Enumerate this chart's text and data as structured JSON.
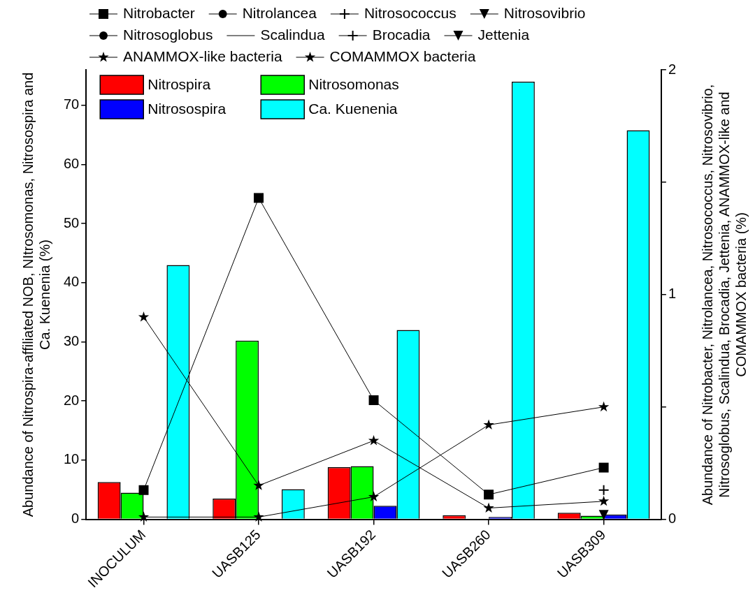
{
  "chart_data": {
    "type": "bar",
    "ylabel": "Abundance of Nitrospira-affiliated NOB, NItrosomonas, Nitrosospira and Ca. Kuenenia (%)",
    "y2label": "Abundance of Nitrobacter, Nitrolancea, Nitrosococcus, Nitrosovibrio, Nitrosoglobus, Scalindua, Brocadia, Jettenia, ANAMMOX-like and COMAMMOX bacteria (%)",
    "categories": [
      "INOCULUM",
      "UASB125",
      "UASB192",
      "UASB260",
      "UASB309"
    ],
    "series": [
      {
        "name": "Nitrospira",
        "color": "#ff0000",
        "values": [
          6.3,
          3.5,
          8.8,
          0.7,
          1.1
        ]
      },
      {
        "name": "Nitrosomonas",
        "color": "#00ff00",
        "values": [
          4.5,
          30.2,
          9.0,
          null,
          0.6
        ]
      },
      {
        "name": "Nitrosospira",
        "color": "#0000ff",
        "values": [
          null,
          null,
          2.3,
          0.4,
          0.8
        ]
      },
      {
        "name": "Ca. Kuenenia",
        "color": "#00ffff",
        "values": [
          43,
          5.1,
          32,
          74,
          65.8
        ]
      },
      {
        "name": "Nitrobacter",
        "type": "line",
        "axis": "y2",
        "marker": "square",
        "color": "#000000",
        "values": [
          0.13,
          1.43,
          0.53,
          0.11,
          0.23
        ]
      },
      {
        "name": "Nitrolancea",
        "type": "line",
        "axis": "y2",
        "marker": "circle",
        "color": "#000000",
        "values": [
          null,
          null,
          null,
          null,
          null
        ]
      },
      {
        "name": "Nitrosococcus",
        "type": "line",
        "axis": "y2",
        "marker": "cross",
        "color": "#000000",
        "values": [
          null,
          null,
          null,
          null,
          null
        ]
      },
      {
        "name": "Nitrosovibrio",
        "type": "line",
        "axis": "y2",
        "marker": "triangle",
        "color": "#000000",
        "values": [
          null,
          null,
          null,
          null,
          null
        ]
      },
      {
        "name": "Nitrosoglobus",
        "type": "line",
        "axis": "y2",
        "marker": "circle",
        "color": "#000000",
        "values": [
          null,
          null,
          null,
          null,
          null
        ]
      },
      {
        "name": "Scalindua",
        "type": "line",
        "axis": "y2",
        "marker": "none",
        "color": "#000000",
        "values": [
          null,
          null,
          null,
          null,
          null
        ]
      },
      {
        "name": "Brocadia",
        "type": "line",
        "axis": "y2",
        "marker": "cross",
        "color": "#000000",
        "values": [
          null,
          null,
          null,
          null,
          0.13
        ]
      },
      {
        "name": "Jettenia",
        "type": "line",
        "axis": "y2",
        "marker": "triangle",
        "color": "#000000",
        "values": [
          null,
          null,
          null,
          null,
          0.02
        ]
      },
      {
        "name": "ANAMMOX-like bacteria",
        "type": "line",
        "axis": "y2",
        "marker": "star",
        "color": "#000000",
        "values": [
          0.01,
          0.01,
          0.1,
          0.42,
          0.5
        ]
      },
      {
        "name": "COMAMMOX bacteria",
        "type": "line",
        "axis": "y2",
        "marker": "star",
        "color": "#000000",
        "values": [
          0.9,
          0.15,
          0.35,
          0.05,
          0.08
        ]
      }
    ],
    "ylim": [
      0,
      76
    ],
    "yticks": [
      0,
      10,
      20,
      30,
      40,
      50,
      60,
      70
    ],
    "y2lim": [
      0,
      2
    ],
    "y2ticks": [
      0,
      {
        "value": 0.5,
        "label": null
      },
      1,
      {
        "value": 1.5,
        "label": null
      },
      2
    ],
    "grid": false,
    "legend": "top"
  }
}
